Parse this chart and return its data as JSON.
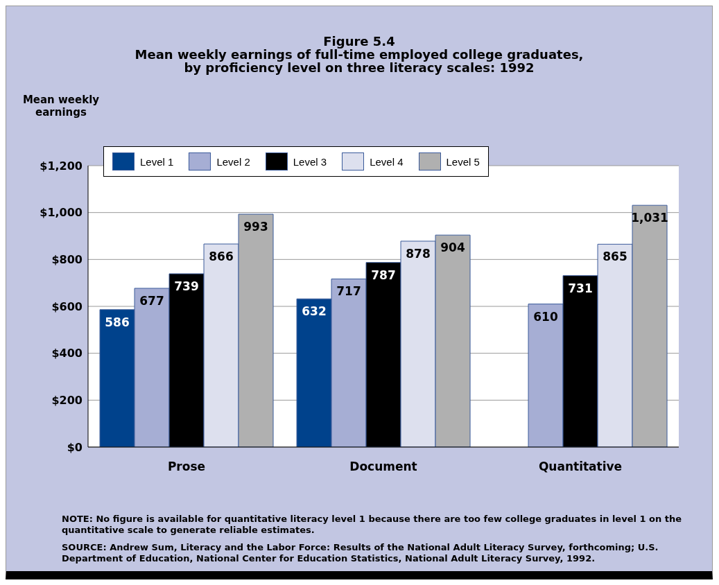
{
  "chart_data": {
    "type": "bar",
    "title": "Figure 5.4",
    "subtitle": "Mean weekly earnings of full-time employed college graduates,\nby proficiency level on three literacy scales: 1992",
    "ylabel": "Mean weekly earnings",
    "categories": [
      "Prose",
      "Document",
      "Quantitative"
    ],
    "series": [
      {
        "name": "Level 1",
        "color": "#00428c",
        "values": [
          586,
          632,
          null
        ],
        "value_labels": [
          "586",
          "632",
          null
        ]
      },
      {
        "name": "Level 2",
        "color": "#a6aed4",
        "values": [
          677,
          717,
          610
        ],
        "value_labels": [
          "677",
          "717",
          "610"
        ]
      },
      {
        "name": "Level 3",
        "color": "#000000",
        "values": [
          739,
          787,
          731
        ],
        "value_labels": [
          "739",
          "787",
          "731"
        ]
      },
      {
        "name": "Level 4",
        "color": "#dde0ee",
        "values": [
          866,
          878,
          865
        ],
        "value_labels": [
          "866",
          "878",
          "865"
        ]
      },
      {
        "name": "Level 5",
        "color": "#b0b0b0",
        "values": [
          993,
          904,
          1031
        ],
        "value_labels": [
          "993",
          "904",
          "1,031"
        ]
      }
    ],
    "ylim": [
      0,
      1200
    ],
    "yticks": [
      {
        "value": 0,
        "label": "$0"
      },
      {
        "value": 200,
        "label": "$200"
      },
      {
        "value": 400,
        "label": "$400"
      },
      {
        "value": 600,
        "label": "$600"
      },
      {
        "value": 800,
        "label": "$800"
      },
      {
        "value": 1000,
        "label": "$1,000"
      },
      {
        "value": 1200,
        "label": "$1,200"
      }
    ],
    "grid": "y",
    "legend": "top left",
    "annotations": [
      "NOTE: No figure is available for quantitative literacy level 1 because there are too few college graduates in level 1 on the quantitative scale to generate reliable estimates.",
      "SOURCE: Andrew Sum, Literacy and the Labor Force: Results of the National Adult Literacy Survey, forthcoming; U.S. Department of Education, National Center for Education Statistics, National Adult Literacy Survey, 1992."
    ]
  }
}
